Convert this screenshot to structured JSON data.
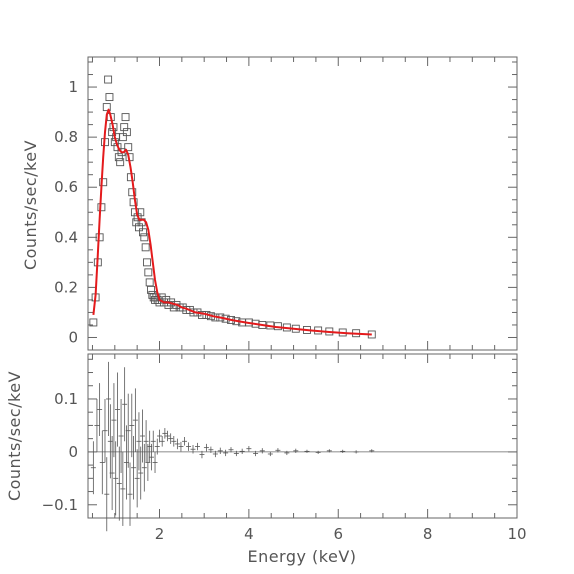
{
  "chart_data": [
    {
      "panel": "spectrum",
      "type": "scatter",
      "xlabel": "",
      "ylabel": "Counts/sec/keV",
      "xlim": [
        0.4,
        10
      ],
      "ylim": [
        -0.05,
        1.12
      ],
      "yticks": [
        {
          "value": 0,
          "label": "0"
        },
        {
          "value": 0.2,
          "label": "0.2"
        },
        {
          "value": 0.4,
          "label": "0.4"
        },
        {
          "value": 0.6,
          "label": "0.6"
        },
        {
          "value": 0.8,
          "label": "0.8"
        },
        {
          "value": 1,
          "label": "1"
        }
      ],
      "grid": false,
      "series": [
        {
          "kind": "data",
          "marker": "open-square",
          "color": "#555555",
          "x": [
            0.52,
            0.57,
            0.62,
            0.66,
            0.7,
            0.74,
            0.78,
            0.82,
            0.85,
            0.88,
            0.91,
            0.94,
            0.97,
            1.0,
            1.03,
            1.06,
            1.09,
            1.12,
            1.15,
            1.18,
            1.21,
            1.24,
            1.27,
            1.3,
            1.33,
            1.36,
            1.39,
            1.42,
            1.45,
            1.48,
            1.51,
            1.54,
            1.57,
            1.6,
            1.63,
            1.66,
            1.69,
            1.72,
            1.75,
            1.78,
            1.81,
            1.84,
            1.87,
            1.9,
            1.93,
            1.96,
            2.0,
            2.05,
            2.1,
            2.15,
            2.2,
            2.26,
            2.32,
            2.38,
            2.45,
            2.52,
            2.6,
            2.68,
            2.76,
            2.85,
            2.95,
            3.05,
            3.15,
            3.25,
            3.36,
            3.48,
            3.6,
            3.72,
            3.85,
            4.0,
            4.15,
            4.3,
            4.48,
            4.65,
            4.85,
            5.05,
            5.3,
            5.55,
            5.8,
            6.1,
            6.4,
            6.75
          ],
          "y": [
            0.06,
            0.16,
            0.3,
            0.4,
            0.52,
            0.62,
            0.78,
            0.92,
            1.03,
            0.96,
            0.88,
            0.82,
            0.84,
            0.78,
            0.8,
            0.76,
            0.72,
            0.7,
            0.74,
            0.8,
            0.84,
            0.88,
            0.82,
            0.76,
            0.72,
            0.64,
            0.58,
            0.54,
            0.5,
            0.46,
            0.48,
            0.44,
            0.5,
            0.46,
            0.42,
            0.4,
            0.36,
            0.3,
            0.26,
            0.22,
            0.19,
            0.17,
            0.16,
            0.15,
            0.16,
            0.15,
            0.14,
            0.16,
            0.14,
            0.15,
            0.13,
            0.14,
            0.12,
            0.13,
            0.12,
            0.12,
            0.11,
            0.11,
            0.1,
            0.1,
            0.09,
            0.09,
            0.085,
            0.08,
            0.08,
            0.075,
            0.07,
            0.065,
            0.06,
            0.06,
            0.055,
            0.05,
            0.048,
            0.045,
            0.04,
            0.035,
            0.03,
            0.028,
            0.024,
            0.02,
            0.017,
            0.012
          ]
        },
        {
          "kind": "model",
          "color": "#e41a1c",
          "x": [
            0.52,
            0.57,
            0.62,
            0.66,
            0.7,
            0.74,
            0.78,
            0.82,
            0.86,
            0.9,
            0.95,
            1.0,
            1.05,
            1.1,
            1.15,
            1.2,
            1.25,
            1.3,
            1.35,
            1.4,
            1.45,
            1.5,
            1.55,
            1.6,
            1.65,
            1.7,
            1.75,
            1.8,
            1.85,
            1.9,
            1.95,
            2.0,
            2.1,
            2.2,
            2.3,
            2.4,
            2.5,
            2.6,
            2.8,
            3.0,
            3.2,
            3.4,
            3.6,
            3.8,
            4.0,
            4.3,
            4.6,
            5.0,
            5.4,
            5.8,
            6.2,
            6.75
          ],
          "y": [
            0.09,
            0.17,
            0.33,
            0.47,
            0.6,
            0.72,
            0.82,
            0.89,
            0.91,
            0.89,
            0.85,
            0.8,
            0.77,
            0.75,
            0.74,
            0.74,
            0.75,
            0.73,
            0.68,
            0.62,
            0.55,
            0.49,
            0.47,
            0.47,
            0.47,
            0.46,
            0.43,
            0.37,
            0.3,
            0.23,
            0.18,
            0.15,
            0.14,
            0.14,
            0.135,
            0.13,
            0.12,
            0.115,
            0.1,
            0.095,
            0.085,
            0.078,
            0.07,
            0.064,
            0.058,
            0.05,
            0.042,
            0.035,
            0.028,
            0.022,
            0.017,
            0.012
          ]
        }
      ]
    },
    {
      "panel": "residuals",
      "type": "scatter",
      "xlabel": "Energy (keV)",
      "ylabel": "Counts/sec/keV",
      "xlim": [
        0.4,
        10
      ],
      "ylim": [
        -0.125,
        0.185
      ],
      "xticks": [
        {
          "value": 2,
          "label": "2"
        },
        {
          "value": 4,
          "label": "4"
        },
        {
          "value": 6,
          "label": "6"
        },
        {
          "value": 8,
          "label": "8"
        },
        {
          "value": 10,
          "label": "10"
        }
      ],
      "yticks": [
        {
          "value": -0.1,
          "label": "−0.1"
        },
        {
          "value": 0,
          "label": "0"
        },
        {
          "value": 0.1,
          "label": "0.1"
        }
      ],
      "grid": false,
      "zero_line": true,
      "series": [
        {
          "kind": "residual",
          "marker": "cross-errorbar",
          "color": "#555555",
          "x": [
            0.52,
            0.6,
            0.66,
            0.72,
            0.78,
            0.82,
            0.86,
            0.9,
            0.94,
            0.98,
            1.02,
            1.06,
            1.1,
            1.14,
            1.18,
            1.22,
            1.26,
            1.3,
            1.34,
            1.38,
            1.42,
            1.46,
            1.5,
            1.54,
            1.58,
            1.62,
            1.66,
            1.7,
            1.74,
            1.78,
            1.82,
            1.86,
            1.9,
            1.95,
            2.0,
            2.06,
            2.12,
            2.18,
            2.25,
            2.32,
            2.4,
            2.48,
            2.56,
            2.65,
            2.75,
            2.85,
            2.95,
            3.05,
            3.15,
            3.25,
            3.36,
            3.48,
            3.6,
            3.72,
            3.85,
            4.0,
            4.15,
            4.3,
            4.48,
            4.65,
            4.85,
            5.05,
            5.3,
            5.55,
            5.8,
            6.1,
            6.4,
            6.75
          ],
          "y": [
            -0.03,
            0.05,
            0.08,
            -0.02,
            0.04,
            -0.08,
            0.1,
            0.02,
            -0.04,
            0.06,
            -0.05,
            0.08,
            -0.06,
            0.03,
            -0.07,
            0.09,
            -0.02,
            0.04,
            -0.08,
            0.05,
            -0.03,
            0.06,
            -0.05,
            0.02,
            -0.04,
            0.03,
            -0.03,
            0.02,
            -0.02,
            0.01,
            -0.01,
            0.02,
            -0.02,
            0.01,
            0.03,
            0.02,
            0.035,
            0.03,
            0.025,
            0.02,
            0.015,
            0.01,
            0.02,
            0.01,
            0.005,
            0.01,
            -0.005,
            0.008,
            0.004,
            -0.004,
            0.002,
            -0.002,
            0.004,
            -0.003,
            0.001,
            0.006,
            -0.003,
            0.002,
            -0.004,
            0.003,
            -0.002,
            0.002,
            0.001,
            -0.001,
            0.002,
            0.001,
            0.0,
            0.002
          ],
          "yerr": [
            0.05,
            0.05,
            0.05,
            0.06,
            0.06,
            0.07,
            0.07,
            0.07,
            0.07,
            0.07,
            0.07,
            0.07,
            0.07,
            0.07,
            0.07,
            0.07,
            0.07,
            0.07,
            0.06,
            0.06,
            0.06,
            0.06,
            0.055,
            0.055,
            0.05,
            0.05,
            0.045,
            0.04,
            0.035,
            0.03,
            0.025,
            0.02,
            0.02,
            0.015,
            0.012,
            0.01,
            0.01,
            0.01,
            0.01,
            0.01,
            0.01,
            0.009,
            0.008,
            0.008,
            0.008,
            0.007,
            0.007,
            0.007,
            0.006,
            0.006,
            0.006,
            0.006,
            0.005,
            0.005,
            0.005,
            0.005,
            0.005,
            0.005,
            0.004,
            0.004,
            0.004,
            0.004,
            0.003,
            0.003,
            0.003,
            0.003,
            0.003,
            0.003
          ]
        }
      ]
    }
  ]
}
